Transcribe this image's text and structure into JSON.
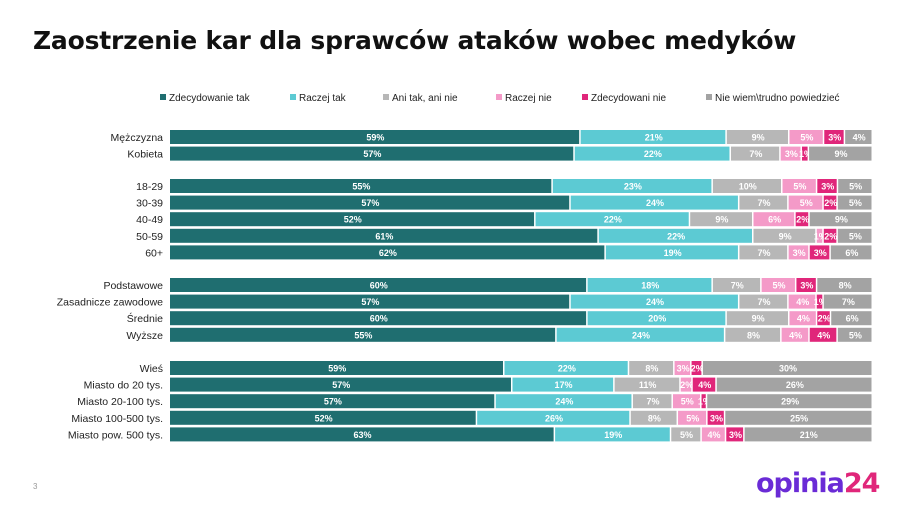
{
  "title": "Zaostrzenie kar dla sprawców ataków wobec medyków",
  "page_number": "3",
  "logo": {
    "text_main": "opinia",
    "text_num": "24"
  },
  "chart_data": {
    "type": "stacked-bar-horizontal",
    "title": "Zaostrzenie kar dla sprawców ataków wobec medyków",
    "legend_position": "top",
    "series": [
      {
        "name": "Zdecydowanie tak",
        "color": "#1f6e70"
      },
      {
        "name": "Raczej tak",
        "color": "#5ccad3"
      },
      {
        "name": "Ani tak, ani nie",
        "color": "#b7b7b7"
      },
      {
        "name": "Raczej nie",
        "color": "#f49ac8"
      },
      {
        "name": "Zdecydowani nie",
        "color": "#e0267a"
      },
      {
        "name": "Nie wiem\\trudno powiedzieć",
        "color": "#a3a3a3"
      }
    ],
    "groups": [
      [
        {
          "label": "Mężczyzna",
          "values": [
            59,
            21,
            9,
            5,
            3,
            4
          ]
        },
        {
          "label": "Kobieta",
          "values": [
            57,
            22,
            7,
            3,
            1,
            9
          ]
        }
      ],
      [
        {
          "label": "18-29",
          "values": [
            55,
            23,
            10,
            5,
            3,
            5
          ]
        },
        {
          "label": "30-39",
          "values": [
            57,
            24,
            7,
            5,
            2,
            5
          ]
        },
        {
          "label": "40-49",
          "values": [
            52,
            22,
            9,
            6,
            2,
            9
          ]
        },
        {
          "label": "50-59",
          "values": [
            61,
            22,
            9,
            1,
            2,
            5
          ]
        },
        {
          "label": "60+",
          "values": [
            62,
            19,
            7,
            3,
            3,
            6
          ]
        }
      ],
      [
        {
          "label": "Podstawowe",
          "values": [
            60,
            18,
            7,
            5,
            3,
            8
          ]
        },
        {
          "label": "Zasadnicze zawodowe",
          "values": [
            57,
            24,
            7,
            4,
            1,
            7
          ]
        },
        {
          "label": "Średnie",
          "values": [
            60,
            20,
            9,
            4,
            2,
            6
          ]
        },
        {
          "label": "Wyższe",
          "values": [
            55,
            24,
            8,
            4,
            4,
            5
          ]
        }
      ],
      [
        {
          "label": "Wieś",
          "values": [
            59,
            22,
            8,
            3,
            2,
            30
          ]
        },
        {
          "label": "Miasto do 20 tys.",
          "values": [
            57,
            17,
            11,
            2,
            4,
            26
          ]
        },
        {
          "label": "Miasto 20-100 tys.",
          "values": [
            57,
            24,
            7,
            5,
            1,
            29
          ]
        },
        {
          "label": "Miasto 100-500 tys.",
          "values": [
            52,
            26,
            8,
            5,
            3,
            25
          ]
        },
        {
          "label": "Miasto pow. 500 tys.",
          "values": [
            63,
            19,
            5,
            4,
            3,
            21
          ]
        }
      ]
    ]
  }
}
